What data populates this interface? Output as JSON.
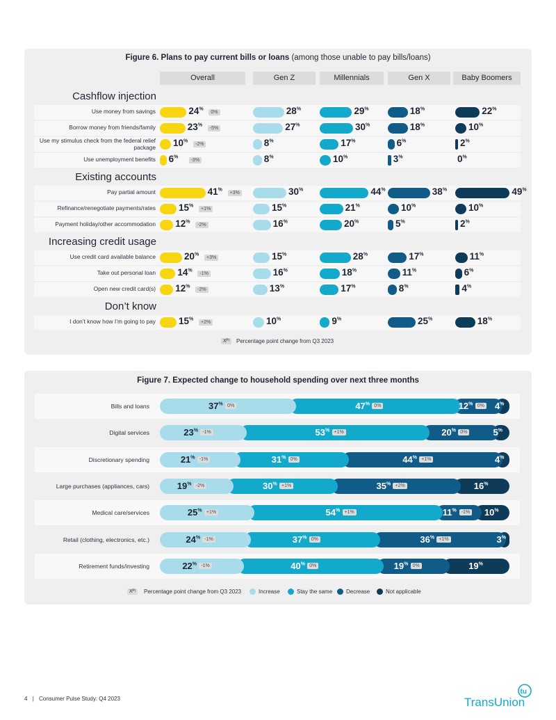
{
  "fig6": {
    "title_bold": "Figure 6. Plans to pay current bills or loans",
    "title_rest": " (among those unable to pay bills/loans)",
    "columns": [
      "Overall",
      "Gen Z",
      "Millennials",
      "Gen X",
      "Baby Boomers"
    ],
    "column_colors": [
      "#f8d511",
      "#a8dcea",
      "#13a9cb",
      "#105b87",
      "#0d3b59"
    ],
    "change_legend_box": "Xᴾᵗ",
    "change_legend": "Percentage point change from Q3 2023",
    "chart_data": {
      "type": "bar",
      "sections": [
        {
          "title": "Cashflow injection",
          "rows": [
            {
              "label": "Use money from savings",
              "values": [
                24,
                28,
                29,
                18,
                22
              ],
              "change": "0%"
            },
            {
              "label": "Borrow money from friends/family",
              "values": [
                23,
                27,
                30,
                18,
                10
              ],
              "change": "-5%"
            },
            {
              "label": "Use my stimulus check from the federal relief package",
              "values": [
                10,
                8,
                17,
                6,
                2
              ],
              "change": "-2%"
            },
            {
              "label": "Use unemployment benefits",
              "values": [
                6,
                8,
                10,
                3,
                0
              ],
              "change": "-3%"
            }
          ]
        },
        {
          "title": "Existing accounts",
          "rows": [
            {
              "label": "Pay partial amount",
              "values": [
                41,
                30,
                44,
                38,
                49
              ],
              "change": "+3%"
            },
            {
              "label": "Refinance/renegotiate payments/rates",
              "values": [
                15,
                15,
                21,
                10,
                10
              ],
              "change": "+1%"
            },
            {
              "label": "Payment holiday/other accommodation",
              "values": [
                12,
                16,
                20,
                5,
                2
              ],
              "change": "-2%"
            }
          ]
        },
        {
          "title": "Increasing credit usage",
          "rows": [
            {
              "label": "Use credit card available balance",
              "values": [
                20,
                15,
                28,
                17,
                11
              ],
              "change": "+3%"
            },
            {
              "label": "Take out personal loan",
              "values": [
                14,
                16,
                18,
                11,
                6
              ],
              "change": "-1%"
            },
            {
              "label": "Open new credit card(s)",
              "values": [
                12,
                13,
                17,
                8,
                4
              ],
              "change": "-2%"
            }
          ]
        },
        {
          "title": "Don’t know",
          "rows": [
            {
              "label": "I don’t know how I’m going to pay",
              "values": [
                15,
                10,
                9,
                25,
                18
              ],
              "change": "+2%"
            }
          ]
        }
      ],
      "value_unit": "%"
    }
  },
  "fig7": {
    "title": "Figure 7. Expected change to household spending over next three months",
    "change_legend_box": "Xᴾᵗ",
    "change_legend": "Percentage point change from Q3 2023",
    "chart_data": {
      "type": "bar",
      "stacked": true,
      "categories": [
        "Bills and loans",
        "Digital services",
        "Discretionary spending",
        "Large purchases (appliances, cars)",
        "Medical care/services",
        "Retail (clothing, electronics, etc.)",
        "Retirement funds/investing"
      ],
      "series": [
        {
          "name": "Increase",
          "color": "#a8dcea",
          "values": [
            37,
            23,
            21,
            19,
            25,
            24,
            22
          ],
          "changes": [
            "0%",
            "-1%",
            "-1%",
            "-2%",
            "+1%",
            "-1%",
            "-1%"
          ]
        },
        {
          "name": "Stay the same",
          "color": "#13a9cb",
          "values": [
            47,
            53,
            31,
            30,
            54,
            37,
            40
          ],
          "changes": [
            "0%",
            "+1%",
            "0%",
            "+1%",
            "+1%",
            "0%",
            "0%"
          ]
        },
        {
          "name": "Decrease",
          "color": "#105b87",
          "values": [
            12,
            20,
            44,
            35,
            11,
            36,
            19
          ],
          "changes": [
            "0%",
            "0%",
            "+1%",
            "+2%",
            "-1%",
            "+1%",
            "0%"
          ]
        },
        {
          "name": "Not applicable",
          "color": "#0d3b59",
          "values": [
            4,
            5,
            4,
            16,
            10,
            3,
            19
          ],
          "changes": [
            "",
            "",
            "",
            "",
            "",
            "",
            ""
          ]
        }
      ],
      "value_unit": "%"
    }
  },
  "footer": {
    "page": "4",
    "separator": "|",
    "text": "Consumer Pulse Study: Q4 2023",
    "logo_text": "TransUnion",
    "logo_badge": "tu",
    "logo_color": "#13a9cb"
  }
}
